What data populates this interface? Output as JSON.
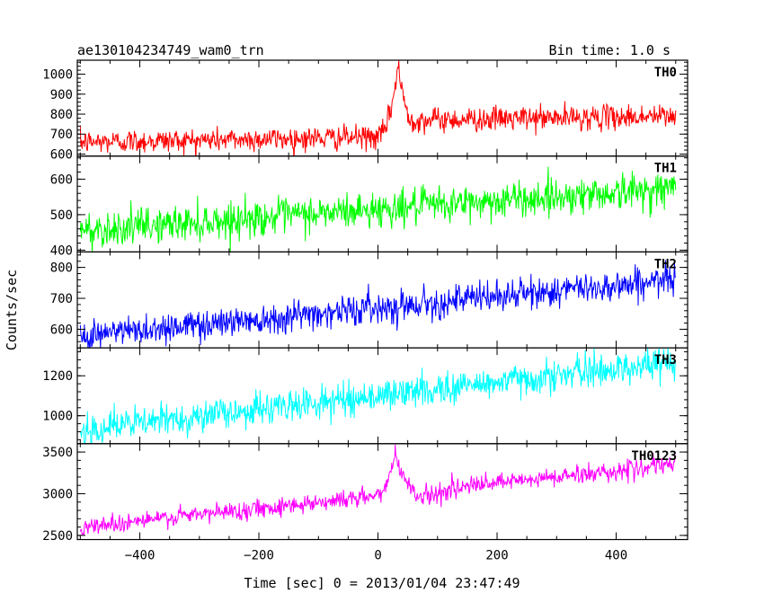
{
  "chart_data": {
    "type": "line",
    "title": "ae130104234749_wam0_trn",
    "bin_time_label": "Bin time: 1.0 s",
    "xlabel": "Time [sec] 0 = 2013/01/04 23:47:49",
    "ylabel": "Counts/sec",
    "xlim": [
      -505,
      520
    ],
    "x_range": [
      -500,
      500
    ],
    "x_step": 1,
    "xticks": [
      -400,
      -200,
      0,
      200,
      400
    ],
    "xtick_labels": [
      "−400",
      "−200",
      "0",
      "200",
      "400"
    ],
    "grid": false,
    "legend": "none",
    "series": [
      {
        "name": "TH0",
        "color": "#ff0000",
        "ylim": [
          590,
          1070
        ],
        "yticks": [
          600,
          700,
          800,
          900,
          1000
        ],
        "baseline_start": 660,
        "baseline_end": 710,
        "post_burst_level": 770,
        "post_burst_end": 790,
        "noise": 30,
        "burst": {
          "start": 0,
          "peak_time": 35,
          "peak_value": 1060,
          "end": 55
        }
      },
      {
        "name": "TH1",
        "color": "#00ff00",
        "ylim": [
          395,
          665
        ],
        "yticks": [
          400,
          500,
          600
        ],
        "baseline_start": 455,
        "baseline_end": 575,
        "noise": 25,
        "burst": null
      },
      {
        "name": "TH2",
        "color": "#0000ff",
        "ylim": [
          540,
          850
        ],
        "yticks": [
          600,
          700,
          800
        ],
        "baseline_start": 580,
        "baseline_end": 760,
        "noise": 25,
        "burst": null
      },
      {
        "name": "TH3",
        "color": "#00ffff",
        "ylim": [
          860,
          1340
        ],
        "yticks": [
          1000,
          1200
        ],
        "baseline_start": 930,
        "baseline_end": 1270,
        "noise": 40,
        "burst": null
      },
      {
        "name": "TH0123",
        "color": "#ff00ff",
        "ylim": [
          2450,
          3600
        ],
        "yticks": [
          2500,
          3000,
          3500
        ],
        "baseline_start": 2600,
        "baseline_end": 3350,
        "noise": 55,
        "burst": {
          "start": 0,
          "peak_time": 30,
          "peak_value": 3550,
          "end": 70,
          "dip_value": 2960
        }
      }
    ]
  }
}
